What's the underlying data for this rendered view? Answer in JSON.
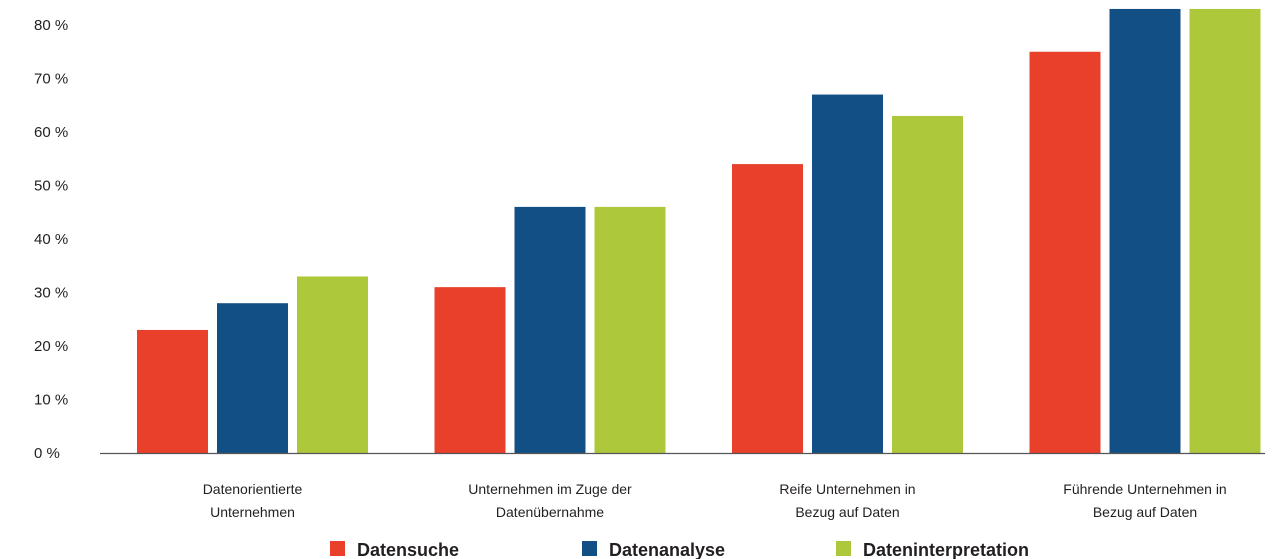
{
  "chart_data": {
    "type": "bar",
    "title": "",
    "xlabel": "",
    "ylabel": "",
    "ylim": [
      0,
      83
    ],
    "yticks": [
      0,
      10,
      20,
      30,
      40,
      50,
      60,
      70,
      80
    ],
    "ytick_labels": [
      "0 %",
      "10 %",
      "20 %",
      "30 %",
      "40 %",
      "50 %",
      "60 %",
      "70 %",
      "80 %"
    ],
    "categories": [
      [
        "Datenorientierte",
        "Unternehmen"
      ],
      [
        "Unternehmen im Zuge der",
        "Datenübernahme"
      ],
      [
        "Reife Unternehmen in",
        "Bezug auf Daten"
      ],
      [
        "Führende Unternehmen in",
        "Bezug auf Daten"
      ]
    ],
    "series": [
      {
        "name": "Datensuche",
        "color": "#e8402a",
        "values": [
          23,
          31,
          54,
          75
        ]
      },
      {
        "name": "Datenanalyse",
        "color": "#114f85",
        "values": [
          28,
          46,
          67,
          83
        ]
      },
      {
        "name": "Dateninterpretation",
        "color": "#adc83a",
        "values": [
          33,
          46,
          63,
          83
        ]
      }
    ],
    "grid": false,
    "legend": "bottom"
  }
}
